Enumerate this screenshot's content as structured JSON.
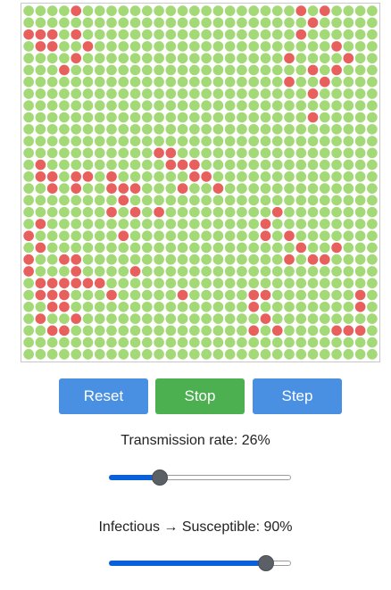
{
  "grid": {
    "rows": 30,
    "cols": 30,
    "colors": {
      "susceptible": "#a3d977",
      "infected": "#e8605d"
    },
    "infected_cells": [
      [
        0,
        4
      ],
      [
        0,
        23
      ],
      [
        0,
        25
      ],
      [
        1,
        24
      ],
      [
        2,
        0
      ],
      [
        2,
        1
      ],
      [
        2,
        2
      ],
      [
        2,
        4
      ],
      [
        2,
        23
      ],
      [
        3,
        1
      ],
      [
        3,
        2
      ],
      [
        3,
        5
      ],
      [
        3,
        26
      ],
      [
        4,
        4
      ],
      [
        4,
        22
      ],
      [
        4,
        27
      ],
      [
        5,
        3
      ],
      [
        5,
        24
      ],
      [
        5,
        26
      ],
      [
        6,
        22
      ],
      [
        6,
        25
      ],
      [
        7,
        24
      ],
      [
        9,
        24
      ],
      [
        12,
        11
      ],
      [
        12,
        12
      ],
      [
        13,
        1
      ],
      [
        13,
        12
      ],
      [
        13,
        13
      ],
      [
        13,
        14
      ],
      [
        14,
        1
      ],
      [
        14,
        2
      ],
      [
        14,
        4
      ],
      [
        14,
        5
      ],
      [
        14,
        7
      ],
      [
        14,
        14
      ],
      [
        14,
        15
      ],
      [
        15,
        2
      ],
      [
        15,
        4
      ],
      [
        15,
        7
      ],
      [
        15,
        8
      ],
      [
        15,
        9
      ],
      [
        15,
        13
      ],
      [
        15,
        16
      ],
      [
        16,
        8
      ],
      [
        17,
        7
      ],
      [
        17,
        9
      ],
      [
        17,
        11
      ],
      [
        17,
        21
      ],
      [
        18,
        1
      ],
      [
        18,
        20
      ],
      [
        19,
        0
      ],
      [
        19,
        8
      ],
      [
        19,
        20
      ],
      [
        19,
        22
      ],
      [
        20,
        1
      ],
      [
        20,
        23
      ],
      [
        20,
        26
      ],
      [
        21,
        0
      ],
      [
        21,
        3
      ],
      [
        21,
        4
      ],
      [
        21,
        22
      ],
      [
        21,
        24
      ],
      [
        21,
        25
      ],
      [
        22,
        0
      ],
      [
        22,
        4
      ],
      [
        22,
        9
      ],
      [
        23,
        1
      ],
      [
        23,
        2
      ],
      [
        23,
        3
      ],
      [
        23,
        4
      ],
      [
        23,
        5
      ],
      [
        23,
        6
      ],
      [
        24,
        1
      ],
      [
        24,
        2
      ],
      [
        24,
        3
      ],
      [
        24,
        7
      ],
      [
        24,
        13
      ],
      [
        24,
        19
      ],
      [
        24,
        20
      ],
      [
        24,
        28
      ],
      [
        25,
        2
      ],
      [
        25,
        3
      ],
      [
        25,
        19
      ],
      [
        25,
        28
      ],
      [
        26,
        1
      ],
      [
        26,
        4
      ],
      [
        26,
        20
      ],
      [
        27,
        2
      ],
      [
        27,
        3
      ],
      [
        27,
        19
      ],
      [
        27,
        21
      ],
      [
        27,
        26
      ],
      [
        27,
        27
      ],
      [
        27,
        28
      ]
    ]
  },
  "buttons": {
    "reset": "Reset",
    "stop": "Stop",
    "step": "Step"
  },
  "transmission": {
    "label": "Transmission rate: 26%",
    "value": 26
  },
  "recovery": {
    "label": "Infectious → Susceptible: 90%",
    "value": 90
  }
}
